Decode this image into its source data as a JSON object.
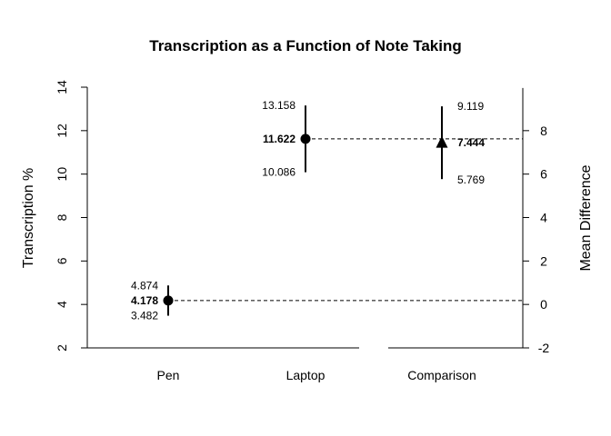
{
  "chart_data": {
    "type": "scatter",
    "title": "Transcription as a Function of Note Taking",
    "ylabel": "Transcription %",
    "y2label": "Mean Difference",
    "ylim": [
      2,
      14
    ],
    "yticks": [
      2,
      4,
      6,
      8,
      10,
      12,
      14
    ],
    "y2lim": [
      -2,
      10
    ],
    "y2ticks": [
      -2,
      0,
      2,
      4,
      6,
      8
    ],
    "categories": [
      "Pen",
      "Laptop",
      "Comparison"
    ],
    "points": [
      {
        "category": "Pen",
        "axis": "left",
        "marker": "circle",
        "mean": 4.178,
        "upper": 4.874,
        "lower": 3.482,
        "mean_label": "4.178",
        "upper_label": "4.874",
        "lower_label": "3.482"
      },
      {
        "category": "Laptop",
        "axis": "left",
        "marker": "circle",
        "mean": 11.622,
        "upper": 13.158,
        "lower": 10.086,
        "mean_label": "11.622",
        "upper_label": "13.158",
        "lower_label": "10.086"
      },
      {
        "category": "Comparison",
        "axis": "right",
        "marker": "triangle",
        "mean": 7.444,
        "upper": 9.119,
        "lower": 5.769,
        "mean_label": "7.444",
        "upper_label": "9.119",
        "lower_label": "5.769"
      }
    ],
    "grid": false,
    "colors": {
      "ink": "#000000",
      "background": "#ffffff"
    }
  }
}
